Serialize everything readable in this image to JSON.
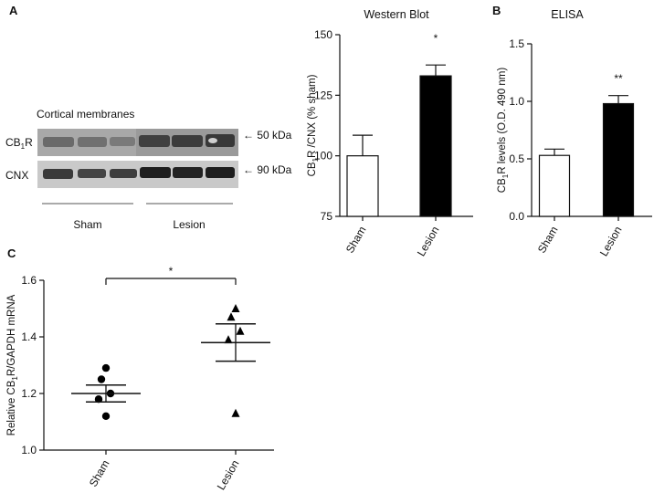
{
  "panels": {
    "a": {
      "letter": "A"
    },
    "b": {
      "letter": "B"
    },
    "c": {
      "letter": "C"
    }
  },
  "blot": {
    "title": "Cortical membranes",
    "rows": [
      {
        "name": "CB",
        "sub": "1",
        "suffix": "R",
        "marker": "← 50 kDa"
      },
      {
        "name": "CNX",
        "sub": "",
        "suffix": "",
        "marker": "← 90 kDa"
      }
    ],
    "groups": [
      "Sham",
      "Lesion"
    ]
  },
  "chart_data": [
    {
      "id": "western",
      "type": "bar",
      "title": "Western Blot",
      "categories": [
        "Sham",
        "Lesion"
      ],
      "values": [
        100,
        133
      ],
      "errors": [
        8.5,
        4.5
      ],
      "bar_colors": [
        "#ffffff",
        "#000000"
      ],
      "ylabel_parts": [
        "CB",
        "1",
        "R /CNX (% sham)"
      ],
      "ylim": [
        75,
        150
      ],
      "yticks": [
        "75",
        "100",
        "125",
        "150"
      ],
      "annotation": "*"
    },
    {
      "id": "elisa",
      "type": "bar",
      "title": "ELISA",
      "categories": [
        "Sham",
        "Lesion"
      ],
      "values": [
        0.53,
        0.98
      ],
      "errors": [
        0.055,
        0.07
      ],
      "bar_colors": [
        "#ffffff",
        "#000000"
      ],
      "ylabel_parts": [
        "CB",
        "1",
        "R levels (O.D. 490 nm)"
      ],
      "ylim": [
        0,
        1.5
      ],
      "yticks": [
        "0.0",
        "0.5",
        "1.0",
        "1.5"
      ],
      "annotation": "**"
    },
    {
      "id": "qpcr",
      "type": "scatter",
      "categories": [
        "Sham",
        "Lesion"
      ],
      "series": [
        {
          "group": "Sham",
          "marker": "circle",
          "values": [
            1.29,
            1.25,
            1.2,
            1.18,
            1.12
          ],
          "mean": 1.2,
          "sem": 0.03
        },
        {
          "group": "Lesion",
          "marker": "triangle",
          "values": [
            1.5,
            1.47,
            1.42,
            1.39,
            1.13
          ],
          "mean": 1.38,
          "sem": 0.066
        }
      ],
      "ylabel_parts": [
        "Relative CB",
        "1",
        "R/GAPDH mRNA"
      ],
      "ylim": [
        1.0,
        1.6
      ],
      "yticks": [
        "1.0",
        "1.2",
        "1.4",
        "1.6"
      ],
      "annotation": "*"
    }
  ]
}
